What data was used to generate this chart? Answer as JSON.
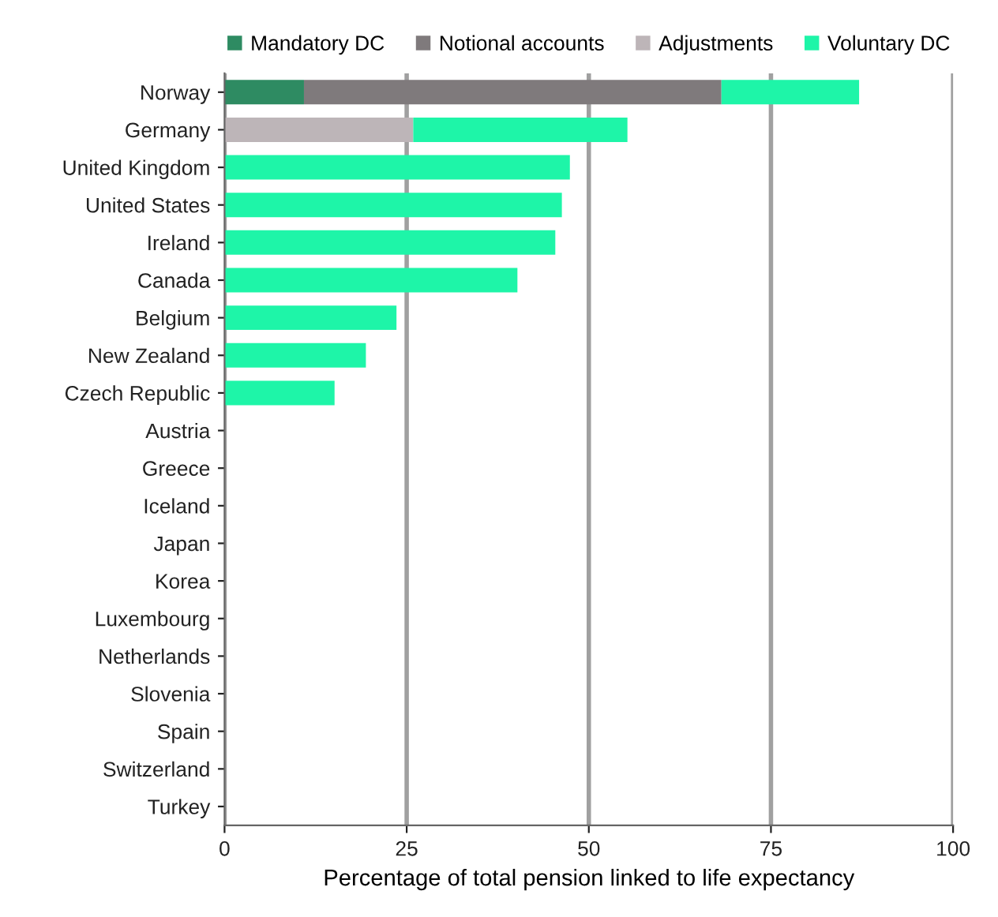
{
  "chart_data": {
    "type": "bar",
    "orientation": "horizontal",
    "stacked": true,
    "xlabel": "Percentage of total pension linked to life expectancy",
    "categories": [
      "Norway",
      "Germany",
      "United Kingdom",
      "United States",
      "Ireland",
      "Canada",
      "Belgium",
      "New Zealand",
      "Czech Republic",
      "Austria",
      "Greece",
      "Iceland",
      "Japan",
      "Korea",
      "Luxembourg",
      "Netherlands",
      "Slovenia",
      "Spain",
      "Switzerland",
      "Turkey"
    ],
    "series": [
      {
        "name": "Mandatory DC",
        "color": "#2e8b62",
        "values": [
          10.9,
          0,
          0,
          0,
          0,
          0,
          0,
          0,
          0,
          0,
          0,
          0,
          0,
          0,
          0,
          0,
          0,
          0,
          0,
          0
        ]
      },
      {
        "name": "Notional accounts",
        "color": "#7f7a7c",
        "values": [
          57.3,
          0,
          0,
          0,
          0,
          0,
          0,
          0,
          0,
          0,
          0,
          0,
          0,
          0,
          0,
          0,
          0,
          0,
          0,
          0
        ]
      },
      {
        "name": "Adjustments",
        "color": "#bdb5b8",
        "values": [
          0,
          25.9,
          0,
          0,
          0,
          0,
          0,
          0,
          0,
          0,
          0,
          0,
          0,
          0,
          0,
          0,
          0,
          0,
          0,
          0
        ]
      },
      {
        "name": "Voluntary DC",
        "color": "#1ef5a8",
        "values": [
          18.9,
          29.4,
          47.4,
          46.3,
          45.4,
          40.2,
          23.6,
          19.4,
          15.1,
          0,
          0,
          0,
          0,
          0,
          0,
          0,
          0,
          0,
          0,
          0
        ]
      }
    ],
    "xlim": [
      0,
      100
    ],
    "xticks": [
      0,
      25,
      50,
      75,
      100
    ],
    "grid": "x",
    "legend": "top"
  }
}
